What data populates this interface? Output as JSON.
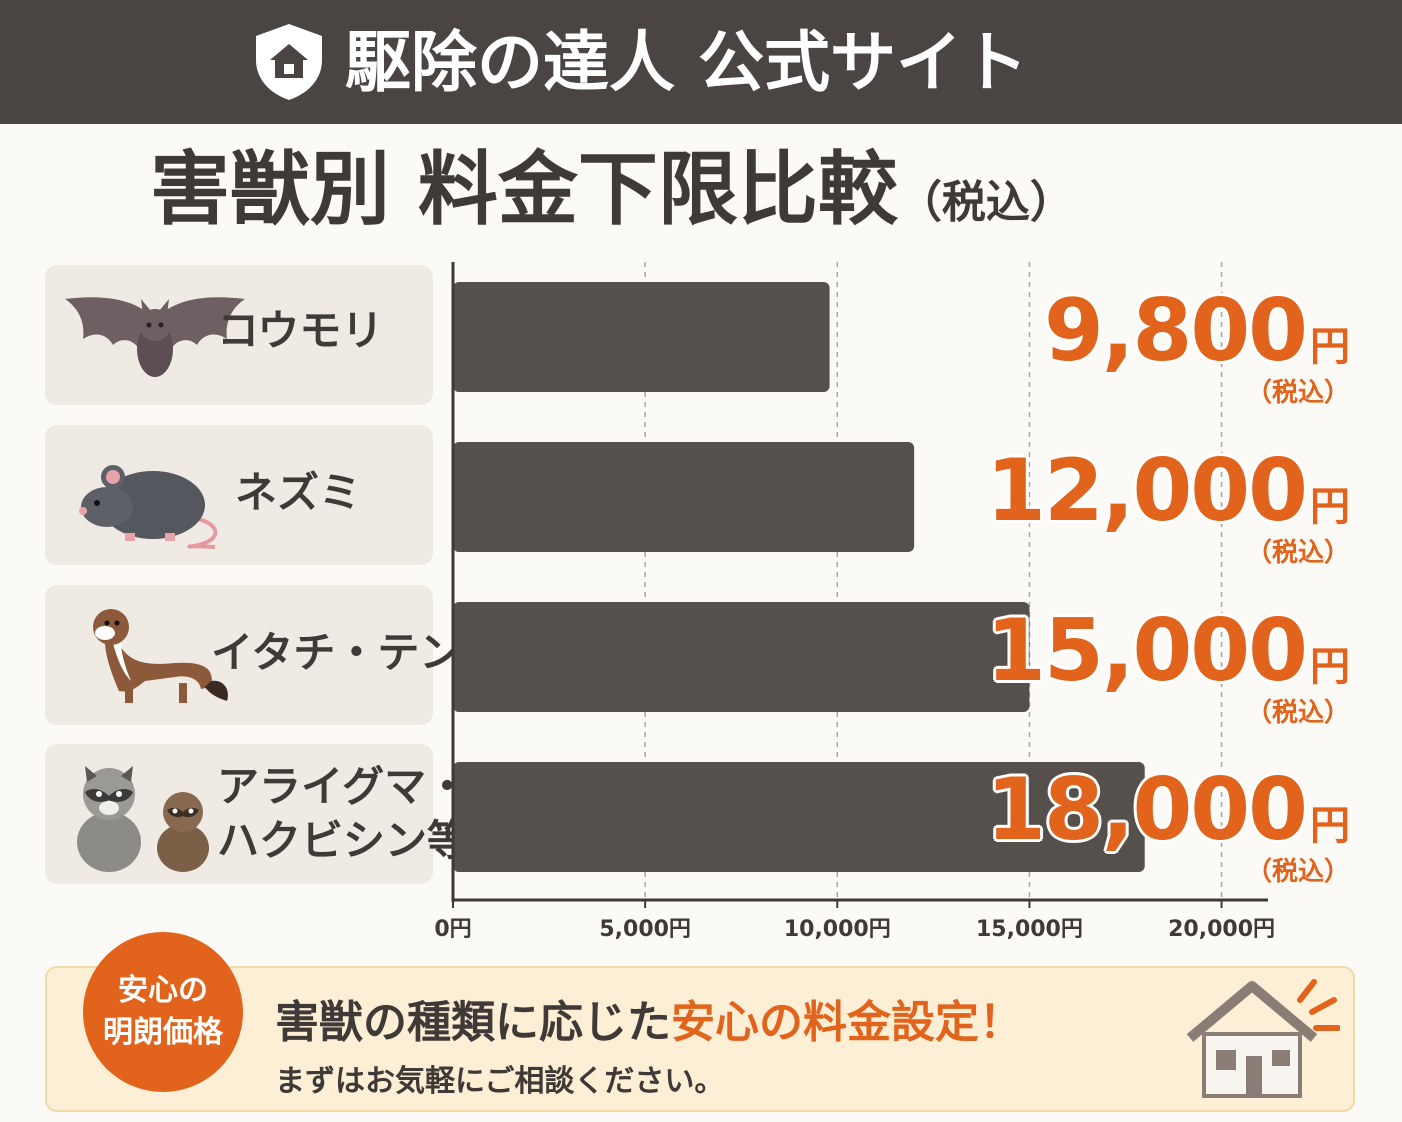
{
  "header": {
    "title": "駆除の達人 公式サイト",
    "logo_icon": "shield-house-icon",
    "background": "#4a4542"
  },
  "chart_title": {
    "main": "害獣別 料金下限比較",
    "suffix": "（税込）"
  },
  "chart_data": {
    "type": "bar",
    "orientation": "horizontal",
    "title": "害獣別 料金下限比較（税込）",
    "categories": [
      "コウモリ",
      "ネズミ",
      "イタチ・テン",
      "アライグマ・ハクビシン等"
    ],
    "category_lines": [
      [
        "コウモリ"
      ],
      [
        "ネズミ"
      ],
      [
        "イタチ・テン"
      ],
      [
        "アライグマ・",
        "ハクビシン等"
      ]
    ],
    "values": [
      9800,
      12000,
      15000,
      18000
    ],
    "value_labels": [
      "9,800",
      "12,000",
      "15,000",
      "18,000"
    ],
    "unit": "円",
    "tax_note": "（税込）",
    "xlim": [
      0,
      21000
    ],
    "x_ticks": [
      0,
      5000,
      10000,
      15000,
      20000
    ],
    "x_tick_labels": [
      "0円",
      "5,000円",
      "10,000円",
      "15,000円",
      "20,000円"
    ],
    "grid": "vertical dashed",
    "bar_color": "#55504c",
    "value_color": "#e2631b"
  },
  "animals": {
    "icons": [
      "bat-icon",
      "rat-icon",
      "weasel-icon",
      "raccoon-icon"
    ]
  },
  "banner": {
    "badge_line1": "安心の",
    "badge_line2": "明朗価格",
    "main_prefix": "害獣の種類に応じた",
    "main_highlight": "安心の料金設定！",
    "sub": "まずはお気軽にご相談ください。",
    "icon": "house-icon",
    "accent": "#e2631b"
  }
}
